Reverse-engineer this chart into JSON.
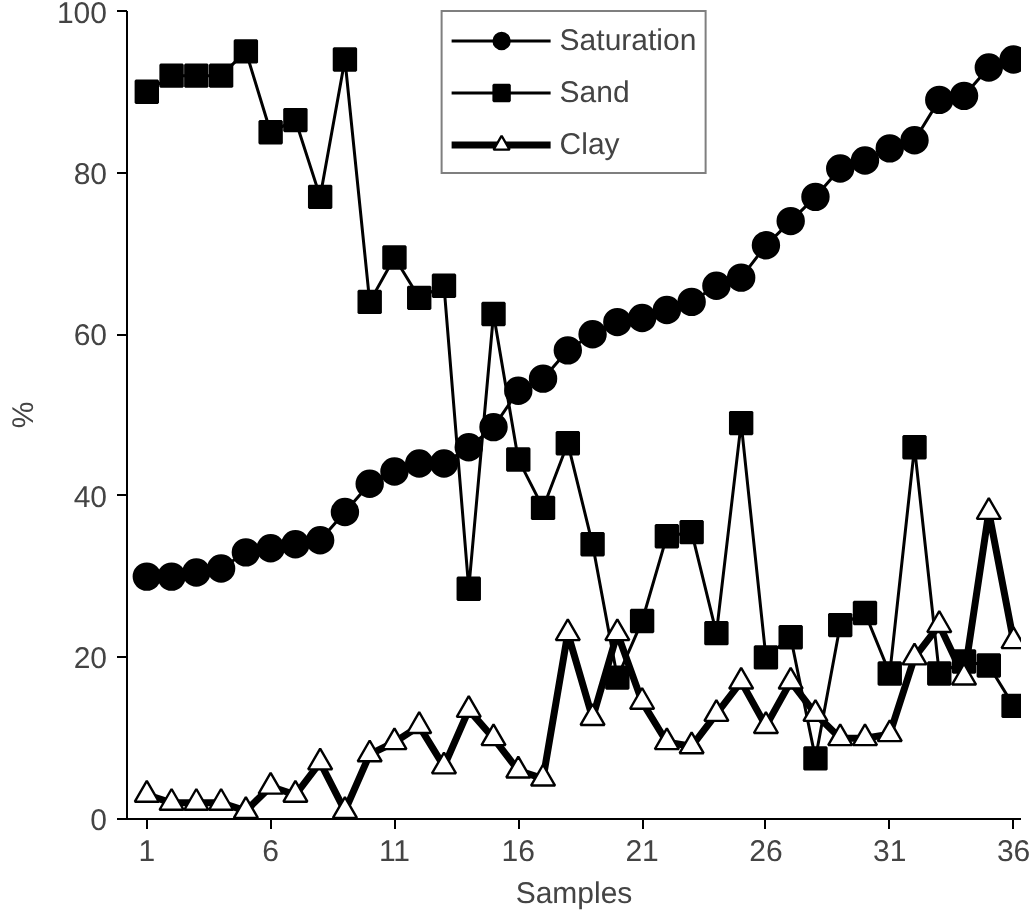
{
  "chart_data": {
    "type": "line",
    "xlabel": "Samples",
    "ylabel": "%",
    "x": [
      1,
      2,
      3,
      4,
      5,
      6,
      7,
      8,
      9,
      10,
      11,
      12,
      13,
      14,
      15,
      16,
      17,
      18,
      19,
      20,
      21,
      22,
      23,
      24,
      25,
      26,
      27,
      28,
      29,
      30,
      31,
      32,
      33,
      34,
      35,
      36
    ],
    "series": [
      {
        "name": "Saturation",
        "color": "#000000",
        "marker": "circle",
        "values": [
          30,
          30,
          30.5,
          31,
          33,
          33.5,
          34,
          34.5,
          38,
          41.5,
          43,
          44,
          44,
          46,
          48.5,
          53,
          54.5,
          58,
          60,
          61.5,
          62,
          63,
          64,
          66,
          67,
          71,
          74,
          77,
          80.5,
          81.5,
          83,
          84,
          89,
          89.5,
          93,
          94
        ]
      },
      {
        "name": "Sand",
        "color": "#000000",
        "marker": "square",
        "values": [
          90,
          92,
          92,
          92,
          95,
          85,
          86.5,
          77,
          94,
          64,
          69.5,
          64.5,
          66,
          28.5,
          62.5,
          44.5,
          38.5,
          46.5,
          34,
          17.5,
          24.5,
          35,
          35.5,
          23,
          49,
          20,
          22.5,
          7.5,
          24,
          25.5,
          18,
          46,
          18,
          19.5,
          19,
          14
        ]
      },
      {
        "name": "Clay",
        "color": "#000000",
        "marker": "triangle",
        "values": [
          3,
          2,
          2,
          2,
          1,
          4,
          3,
          7,
          1,
          8,
          9.5,
          11.5,
          6.5,
          13.5,
          10,
          6,
          5,
          23,
          12.5,
          23,
          14.5,
          9.5,
          9,
          13,
          17,
          11.5,
          17,
          13,
          10,
          10,
          10.5,
          20,
          24,
          17.5,
          38,
          22
        ]
      }
    ],
    "xlim": [
      0.2,
      36.3
    ],
    "xticks": [
      1,
      6,
      11,
      16,
      21,
      26,
      31,
      36
    ],
    "ylim": [
      0,
      100
    ],
    "yticks": [
      0,
      20,
      40,
      60,
      80,
      100
    ],
    "legend": "top",
    "grid": false
  }
}
